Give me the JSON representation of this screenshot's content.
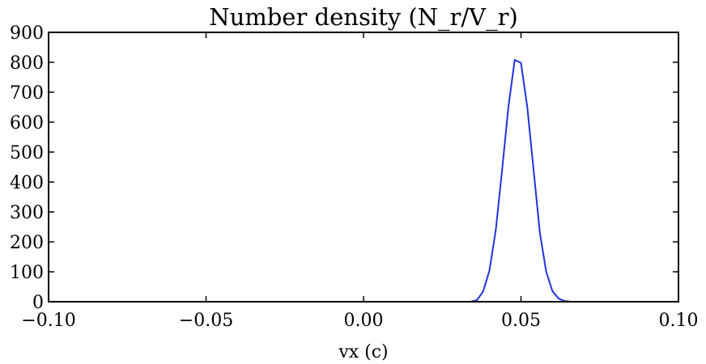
{
  "chart_data": {
    "type": "line",
    "title": "Number density (N_r/V_r)",
    "xlabel": "vx (c)",
    "ylabel": "",
    "xlim": [
      -0.1,
      0.1
    ],
    "ylim": [
      0,
      900
    ],
    "x_ticks": [
      "−0.10",
      "−0.05",
      "0.00",
      "0.05",
      "0.10"
    ],
    "x_tick_values": [
      -0.1,
      -0.05,
      0.0,
      0.05,
      0.1
    ],
    "y_ticks": [
      "0",
      "100",
      "200",
      "300",
      "400",
      "500",
      "600",
      "700",
      "800",
      "900"
    ],
    "y_tick_values": [
      0,
      100,
      200,
      300,
      400,
      500,
      600,
      700,
      800,
      900
    ],
    "grid": false,
    "series": [
      {
        "color": "#2233dd",
        "x": [
          -0.1,
          0.034,
          0.036,
          0.038,
          0.04,
          0.042,
          0.044,
          0.046,
          0.048,
          0.05,
          0.052,
          0.054,
          0.056,
          0.058,
          0.06,
          0.062,
          0.064,
          0.066,
          0.1
        ],
        "y": [
          0,
          0,
          5,
          35,
          105,
          240,
          440,
          650,
          808,
          798,
          650,
          440,
          230,
          100,
          35,
          10,
          2,
          0,
          0
        ]
      }
    ]
  }
}
